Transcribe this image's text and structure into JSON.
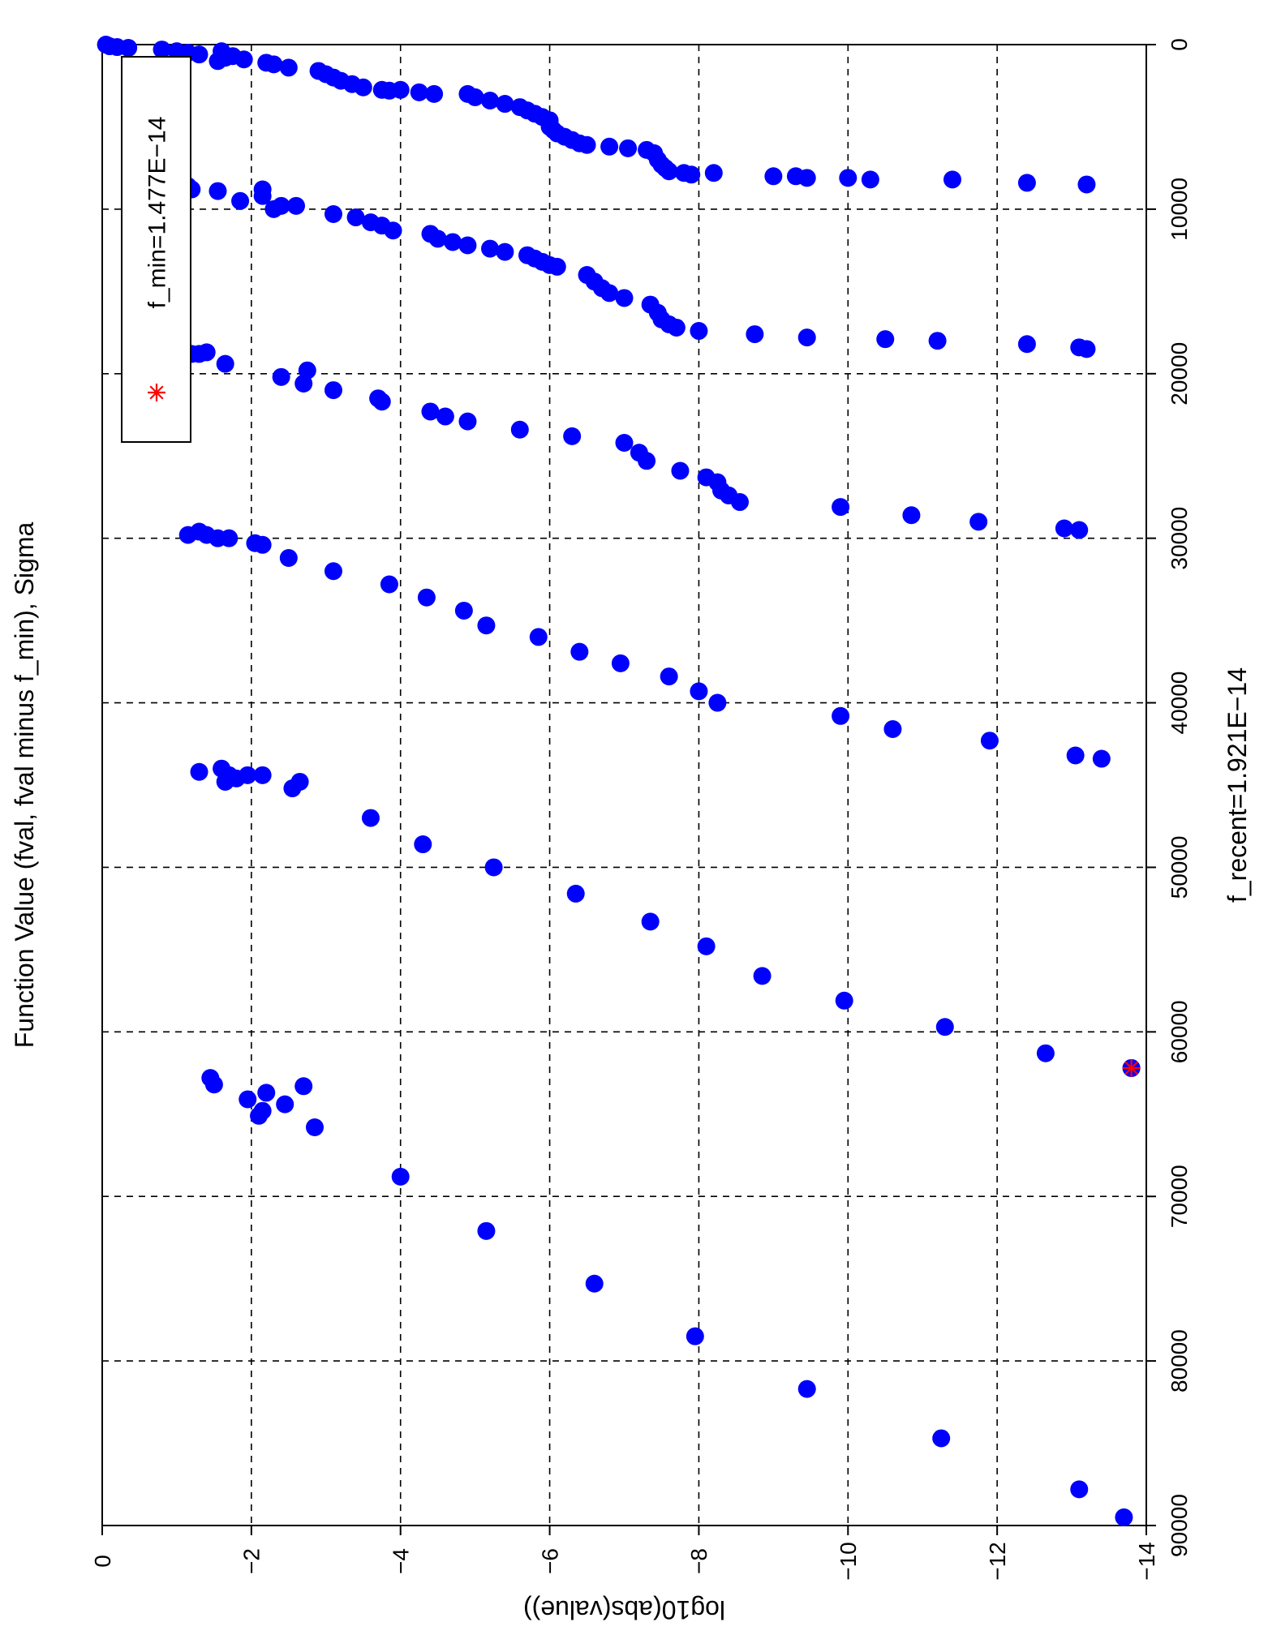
{
  "chart_data": {
    "type": "scatter",
    "title": "Function Value (fval, fval minus f_min), Sigma",
    "xlabel": "f_recent=1.921E−14",
    "ylabel": "log10(abs(value))",
    "xlim": [
      0,
      90000
    ],
    "ylim": [
      -14,
      0
    ],
    "x_ticks": [
      0,
      10000,
      20000,
      30000,
      40000,
      50000,
      60000,
      70000,
      80000,
      90000
    ],
    "x_tick_labels": [
      "0",
      "10000",
      "20000",
      "30000",
      "40000",
      "50000",
      "60000",
      "70000",
      "80000",
      "90000"
    ],
    "y_ticks": [
      0,
      -2,
      -4,
      -6,
      -8,
      -10,
      -12,
      -14
    ],
    "y_tick_labels": [
      "0",
      "−2",
      "−4",
      "−6",
      "−8",
      "−10",
      "−12",
      "−14"
    ],
    "grid": true,
    "orientation": "rotated 90 degrees clockwise",
    "legend": {
      "placement": "top-right",
      "label": "f_min=1.477E−14",
      "marker": "asterisk",
      "color": "#ff0000"
    },
    "series": [
      {
        "marker": "filled-circle",
        "color": "#0000ff",
        "points": [
          [
            0,
            -0.05
          ],
          [
            100,
            -0.1
          ],
          [
            150,
            -0.2
          ],
          [
            200,
            -0.35
          ],
          [
            300,
            -0.8
          ],
          [
            400,
            -1.0
          ],
          [
            500,
            -1.15
          ],
          [
            600,
            -1.3
          ],
          [
            400,
            -1.6
          ],
          [
            700,
            -1.75
          ],
          [
            800,
            -1.65
          ],
          [
            900,
            -1.9
          ],
          [
            1000,
            -1.55
          ],
          [
            1100,
            -2.2
          ],
          [
            1200,
            -2.3
          ],
          [
            1400,
            -2.5
          ],
          [
            1600,
            -2.9
          ],
          [
            1800,
            -3.0
          ],
          [
            2000,
            -3.1
          ],
          [
            2200,
            -3.2
          ],
          [
            2400,
            -3.35
          ],
          [
            2600,
            -3.5
          ],
          [
            2750,
            -3.75
          ],
          [
            2750,
            -4.0
          ],
          [
            2800,
            -3.85
          ],
          [
            2900,
            -4.25
          ],
          [
            3000,
            -4.45
          ],
          [
            3000,
            -4.9
          ],
          [
            3200,
            -5.0
          ],
          [
            3400,
            -5.2
          ],
          [
            3600,
            -5.4
          ],
          [
            3800,
            -5.6
          ],
          [
            4000,
            -5.7
          ],
          [
            4200,
            -5.8
          ],
          [
            4400,
            -5.9
          ],
          [
            4600,
            -6.0
          ],
          [
            4800,
            -6.0
          ],
          [
            5000,
            -6.0
          ],
          [
            5200,
            -6.05
          ],
          [
            5400,
            -6.1
          ],
          [
            5600,
            -6.2
          ],
          [
            5800,
            -6.3
          ],
          [
            6000,
            -6.4
          ],
          [
            6100,
            -6.5
          ],
          [
            6200,
            -6.8
          ],
          [
            6300,
            -7.05
          ],
          [
            6400,
            -7.3
          ],
          [
            6600,
            -7.4
          ],
          [
            7000,
            -7.45
          ],
          [
            7300,
            -7.5
          ],
          [
            7500,
            -7.55
          ],
          [
            7700,
            -7.6
          ],
          [
            7800,
            -7.8
          ],
          [
            7900,
            -7.9
          ],
          [
            7800,
            -8.2
          ],
          [
            8000,
            -9.0
          ],
          [
            8000,
            -9.3
          ],
          [
            8100,
            -9.45
          ],
          [
            8100,
            -10.0
          ],
          [
            8200,
            -10.3
          ],
          [
            8200,
            -11.4
          ],
          [
            8400,
            -12.4
          ],
          [
            8500,
            -13.2
          ],
          [
            8600,
            -0.4
          ],
          [
            8600,
            -0.55
          ],
          [
            8600,
            -0.65
          ],
          [
            9000,
            -1.0
          ],
          [
            8600,
            -1.15
          ],
          [
            8800,
            -1.2
          ],
          [
            8900,
            -1.55
          ],
          [
            9500,
            -1.85
          ],
          [
            8800,
            -2.15
          ],
          [
            9200,
            -2.15
          ],
          [
            10000,
            -2.3
          ],
          [
            9800,
            -2.4
          ],
          [
            9800,
            -2.6
          ],
          [
            10300,
            -3.1
          ],
          [
            10500,
            -3.4
          ],
          [
            10800,
            -3.6
          ],
          [
            11000,
            -3.75
          ],
          [
            11300,
            -3.9
          ],
          [
            11500,
            -4.4
          ],
          [
            11800,
            -4.5
          ],
          [
            12000,
            -4.7
          ],
          [
            12200,
            -4.9
          ],
          [
            12400,
            -5.2
          ],
          [
            12600,
            -5.4
          ],
          [
            12800,
            -5.7
          ],
          [
            13000,
            -5.8
          ],
          [
            13200,
            -5.9
          ],
          [
            13400,
            -6.0
          ],
          [
            13500,
            -6.1
          ],
          [
            14000,
            -6.5
          ],
          [
            14400,
            -6.6
          ],
          [
            14800,
            -6.7
          ],
          [
            15100,
            -6.8
          ],
          [
            15400,
            -7.0
          ],
          [
            15800,
            -7.35
          ],
          [
            16300,
            -7.45
          ],
          [
            16700,
            -7.5
          ],
          [
            17000,
            -7.6
          ],
          [
            17200,
            -7.7
          ],
          [
            17400,
            -8.0
          ],
          [
            17600,
            -8.75
          ],
          [
            17800,
            -9.45
          ],
          [
            17900,
            -10.5
          ],
          [
            18000,
            -11.2
          ],
          [
            18200,
            -12.4
          ],
          [
            18400,
            -13.1
          ],
          [
            18500,
            -13.2
          ],
          [
            18800,
            -0.8
          ],
          [
            18700,
            -1.0
          ],
          [
            18800,
            -1.1
          ],
          [
            18800,
            -1.2
          ],
          [
            18800,
            -1.3
          ],
          [
            18700,
            -1.4
          ],
          [
            19400,
            -1.65
          ],
          [
            20200,
            -2.4
          ],
          [
            19800,
            -2.75
          ],
          [
            20600,
            -2.7
          ],
          [
            21000,
            -3.1
          ],
          [
            21500,
            -3.7
          ],
          [
            21700,
            -3.75
          ],
          [
            22300,
            -4.4
          ],
          [
            22600,
            -4.6
          ],
          [
            22900,
            -4.9
          ],
          [
            23400,
            -5.6
          ],
          [
            23800,
            -6.3
          ],
          [
            24200,
            -7.0
          ],
          [
            24800,
            -7.2
          ],
          [
            25300,
            -7.3
          ],
          [
            25900,
            -7.75
          ],
          [
            26300,
            -8.1
          ],
          [
            26600,
            -8.25
          ],
          [
            27100,
            -8.3
          ],
          [
            27400,
            -8.4
          ],
          [
            27800,
            -8.55
          ],
          [
            28100,
            -9.9
          ],
          [
            28600,
            -10.85
          ],
          [
            29000,
            -11.75
          ],
          [
            29400,
            -12.9
          ],
          [
            29500,
            -13.1
          ],
          [
            29800,
            -1.15
          ],
          [
            29600,
            -1.3
          ],
          [
            29800,
            -1.4
          ],
          [
            30000,
            -1.55
          ],
          [
            30000,
            -1.7
          ],
          [
            30300,
            -2.05
          ],
          [
            30400,
            -2.15
          ],
          [
            31200,
            -2.5
          ],
          [
            32000,
            -3.1
          ],
          [
            32800,
            -3.85
          ],
          [
            33600,
            -4.35
          ],
          [
            34400,
            -4.85
          ],
          [
            35300,
            -5.15
          ],
          [
            36000,
            -5.85
          ],
          [
            36900,
            -6.4
          ],
          [
            37600,
            -6.95
          ],
          [
            38400,
            -7.6
          ],
          [
            39300,
            -8.0
          ],
          [
            40000,
            -8.25
          ],
          [
            40800,
            -9.9
          ],
          [
            41600,
            -10.6
          ],
          [
            42300,
            -11.9
          ],
          [
            43200,
            -13.05
          ],
          [
            43400,
            -13.4
          ],
          [
            44200,
            -1.3
          ],
          [
            44000,
            -1.6
          ],
          [
            44400,
            -1.7
          ],
          [
            44600,
            -1.8
          ],
          [
            44800,
            -1.65
          ],
          [
            44400,
            -1.95
          ],
          [
            44400,
            -2.15
          ],
          [
            45200,
            -2.55
          ],
          [
            44800,
            -2.65
          ],
          [
            47000,
            -3.6
          ],
          [
            48600,
            -4.3
          ],
          [
            50000,
            -5.25
          ],
          [
            51600,
            -6.35
          ],
          [
            53300,
            -7.35
          ],
          [
            54800,
            -8.1
          ],
          [
            56600,
            -8.85
          ],
          [
            58100,
            -9.95
          ],
          [
            59700,
            -11.3
          ],
          [
            61300,
            -12.65
          ],
          [
            62200,
            -13.8
          ],
          [
            62800,
            -1.45
          ],
          [
            63200,
            -1.5
          ],
          [
            64100,
            -1.95
          ],
          [
            63700,
            -2.2
          ],
          [
            64800,
            -2.15
          ],
          [
            65100,
            -2.1
          ],
          [
            64400,
            -2.45
          ],
          [
            63300,
            -2.7
          ],
          [
            65800,
            -2.85
          ],
          [
            68800,
            -4.0
          ],
          [
            72100,
            -5.15
          ],
          [
            75300,
            -6.6
          ],
          [
            78500,
            -7.95
          ],
          [
            81700,
            -9.45
          ],
          [
            84700,
            -11.25
          ],
          [
            87800,
            -13.1
          ],
          [
            89500,
            -13.7
          ]
        ]
      },
      {
        "name": "f_min=1.477E−14",
        "marker": "asterisk",
        "color": "#ff0000",
        "points": [
          [
            62200,
            -13.8
          ]
        ]
      }
    ]
  }
}
